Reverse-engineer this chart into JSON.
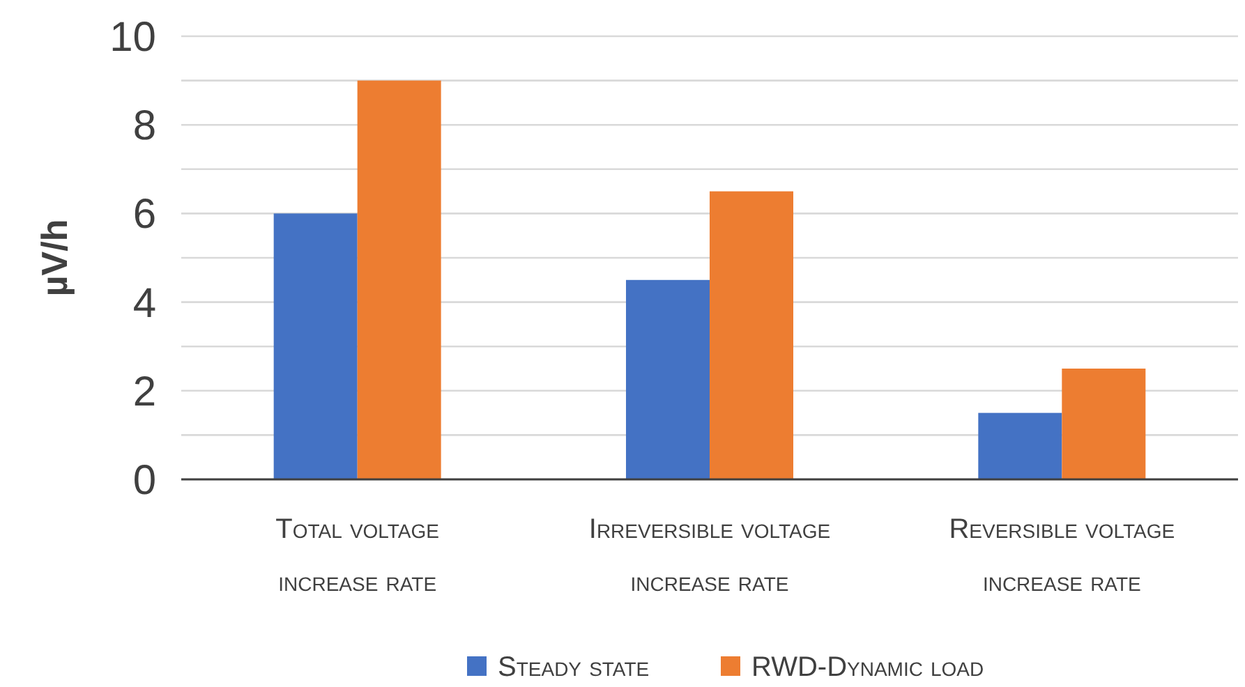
{
  "chart_data": {
    "type": "bar",
    "ylabel": "µV/h",
    "categories": [
      "Total voltage increase rate",
      "Irreversible voltage increase rate",
      "Reversible voltage increase rate"
    ],
    "series": [
      {
        "name": "Steady state",
        "color": "#4472c4",
        "values": [
          6,
          4.5,
          1.5
        ]
      },
      {
        "name": "RWD-Dynamic load",
        "color": "#ed7d31",
        "values": [
          9,
          6.5,
          2.5
        ]
      }
    ],
    "ylim": [
      0,
      10
    ],
    "yticks": [
      0,
      {
        "value": 1,
        "label": null
      },
      2,
      {
        "value": 3,
        "label": null
      },
      4,
      {
        "value": 5,
        "label": null
      },
      6,
      {
        "value": 7,
        "label": null
      },
      8,
      {
        "value": 9,
        "label": null
      },
      10
    ],
    "grid": true,
    "legend": "bottom"
  }
}
